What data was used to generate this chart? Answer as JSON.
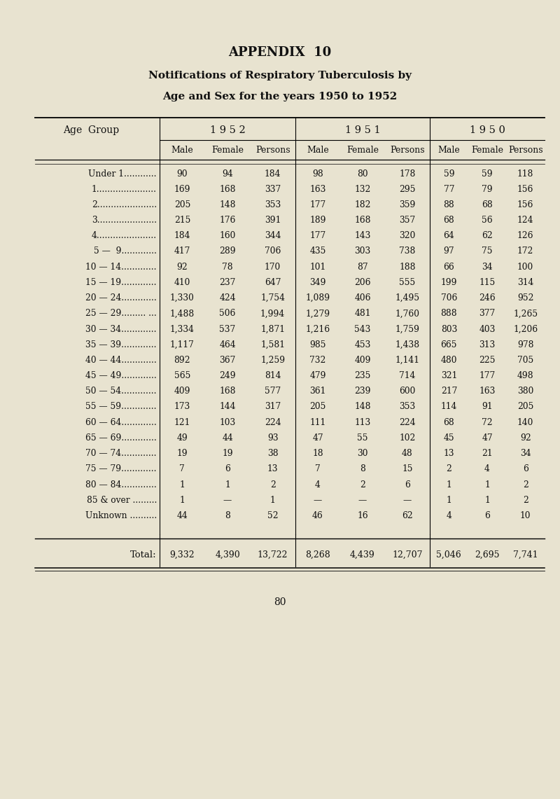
{
  "title1": "APPENDIX  10",
  "title2": "Notifications of Respiratory Tuberculosis by",
  "title3": "Age and Sex for the years 1950 to 1952",
  "page_number": "80",
  "background_color": "#e8e3d0",
  "col_headers_year": [
    "1 9 5 2",
    "1 9 5 1",
    "1 9 5 0"
  ],
  "col_headers_sub": [
    "Male",
    "Female",
    "Persons"
  ],
  "age_group_label": "Age  Group",
  "rows": [
    {
      "age": "Under 1............",
      "data": [
        "90",
        "94",
        "184",
        "98",
        "80",
        "178",
        "59",
        "59",
        "118"
      ]
    },
    {
      "age": "1......................",
      "data": [
        "169",
        "168",
        "337",
        "163",
        "132",
        "295",
        "77",
        "79",
        "156"
      ]
    },
    {
      "age": "2......................",
      "data": [
        "205",
        "148",
        "353",
        "177",
        "182",
        "359",
        "88",
        "68",
        "156"
      ]
    },
    {
      "age": "3......................",
      "data": [
        "215",
        "176",
        "391",
        "189",
        "168",
        "357",
        "68",
        "56",
        "124"
      ]
    },
    {
      "age": "4......................",
      "data": [
        "184",
        "160",
        "344",
        "177",
        "143",
        "320",
        "64",
        "62",
        "126"
      ]
    },
    {
      "age": "5 —  9.............",
      "data": [
        "417",
        "289",
        "706",
        "435",
        "303",
        "738",
        "97",
        "75",
        "172"
      ]
    },
    {
      "age": "10 — 14.............",
      "data": [
        "92",
        "78",
        "170",
        "101",
        "87",
        "188",
        "66",
        "34",
        "100"
      ]
    },
    {
      "age": "15 — 19.............",
      "data": [
        "410",
        "237",
        "647",
        "349",
        "206",
        "555",
        "199",
        "115",
        "314"
      ]
    },
    {
      "age": "20 — 24.............",
      "data": [
        "1,330",
        "424",
        "1,754",
        "1,089",
        "406",
        "1,495",
        "706",
        "246",
        "952"
      ]
    },
    {
      "age": "25 — 29......... ...",
      "data": [
        "1,488",
        "506",
        "1,994",
        "1,279",
        "481",
        "1,760",
        "888",
        "377",
        "1,265"
      ]
    },
    {
      "age": "30 — 34.............",
      "data": [
        "1,334",
        "537",
        "1,871",
        "1,216",
        "543",
        "1,759",
        "803",
        "403",
        "1,206"
      ]
    },
    {
      "age": "35 — 39.............",
      "data": [
        "1,117",
        "464",
        "1,581",
        "985",
        "453",
        "1,438",
        "665",
        "313",
        "978"
      ]
    },
    {
      "age": "40 — 44.............",
      "data": [
        "892",
        "367",
        "1,259",
        "732",
        "409",
        "1,141",
        "480",
        "225",
        "705"
      ]
    },
    {
      "age": "45 — 49.............",
      "data": [
        "565",
        "249",
        "814",
        "479",
        "235",
        "714",
        "321",
        "177",
        "498"
      ]
    },
    {
      "age": "50 — 54.............",
      "data": [
        "409",
        "168",
        "577",
        "361",
        "239",
        "600",
        "217",
        "163",
        "380"
      ]
    },
    {
      "age": "55 — 59.............",
      "data": [
        "173",
        "144",
        "317",
        "205",
        "148",
        "353",
        "114",
        "91",
        "205"
      ]
    },
    {
      "age": "60 — 64.............",
      "data": [
        "121",
        "103",
        "224",
        "111",
        "113",
        "224",
        "68",
        "72",
        "140"
      ]
    },
    {
      "age": "65 — 69.............",
      "data": [
        "49",
        "44",
        "93",
        "47",
        "55",
        "102",
        "45",
        "47",
        "92"
      ]
    },
    {
      "age": "70 — 74.............",
      "data": [
        "19",
        "19",
        "38",
        "18",
        "30",
        "48",
        "13",
        "21",
        "34"
      ]
    },
    {
      "age": "75 — 79.............",
      "data": [
        "7",
        "6",
        "13",
        "7",
        "8",
        "15",
        "2",
        "4",
        "6"
      ]
    },
    {
      "age": "80 — 84.............",
      "data": [
        "1",
        "1",
        "2",
        "4",
        "2",
        "6",
        "1",
        "1",
        "2"
      ]
    },
    {
      "age": "85 & over .........",
      "data": [
        "1",
        "—",
        "1",
        "—",
        "—",
        "—",
        "1",
        "1",
        "2"
      ]
    },
    {
      "age": "Unknown ..........",
      "data": [
        "44",
        "8",
        "52",
        "46",
        "16",
        "62",
        "4",
        "6",
        "10"
      ]
    }
  ],
  "total_row": {
    "label": "Total:",
    "data": [
      "9,332",
      "4,390",
      "13,722",
      "8,268",
      "4,439",
      "12,707",
      "5,046",
      "2,695",
      "7,741"
    ]
  }
}
